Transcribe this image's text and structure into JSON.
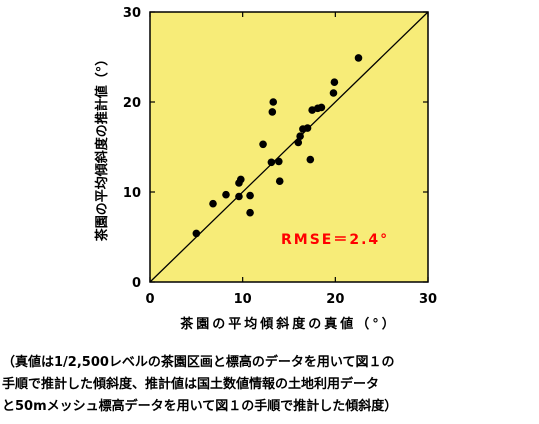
{
  "chart_data": {
    "type": "scatter",
    "xlabel": "茶園の平均傾斜度の真値（°）",
    "ylabel": "茶園の平均傾斜度の推計値（°）",
    "xlim": [
      0,
      30
    ],
    "ylim": [
      0,
      30
    ],
    "xticks": [
      "0",
      "10",
      "20",
      "30"
    ],
    "yticks": [
      "0",
      "10",
      "20",
      "30"
    ],
    "annotation": "RMSE＝2.4°",
    "reference_line": "y = x",
    "background_color": "#f7ec78",
    "annotation_color": "#ff0000",
    "marker_color": "#000000",
    "points": [
      [
        5.0,
        5.4
      ],
      [
        6.8,
        8.7
      ],
      [
        8.2,
        9.7
      ],
      [
        9.6,
        9.5
      ],
      [
        9.6,
        11.0
      ],
      [
        9.8,
        11.4
      ],
      [
        10.8,
        9.6
      ],
      [
        10.8,
        7.7
      ],
      [
        12.2,
        15.3
      ],
      [
        13.1,
        13.3
      ],
      [
        13.2,
        18.9
      ],
      [
        13.3,
        20.0
      ],
      [
        13.9,
        13.4
      ],
      [
        14.0,
        11.2
      ],
      [
        16.0,
        15.5
      ],
      [
        16.2,
        16.2
      ],
      [
        16.5,
        17.0
      ],
      [
        17.0,
        17.1
      ],
      [
        17.3,
        13.6
      ],
      [
        17.5,
        19.1
      ],
      [
        18.1,
        19.3
      ],
      [
        18.5,
        19.4
      ],
      [
        19.8,
        21.0
      ],
      [
        19.9,
        22.2
      ],
      [
        22.5,
        24.9
      ]
    ]
  },
  "caption": {
    "line1": "（真値は1/2,500レベルの茶園区画と標高のデータを用いて図１の",
    "line2": "手順で推計した傾斜度、推計値は国土数値情報の土地利用データ",
    "line3": "と50mメッシュ標高データを用いて図１の手順で推計した傾斜度）"
  }
}
